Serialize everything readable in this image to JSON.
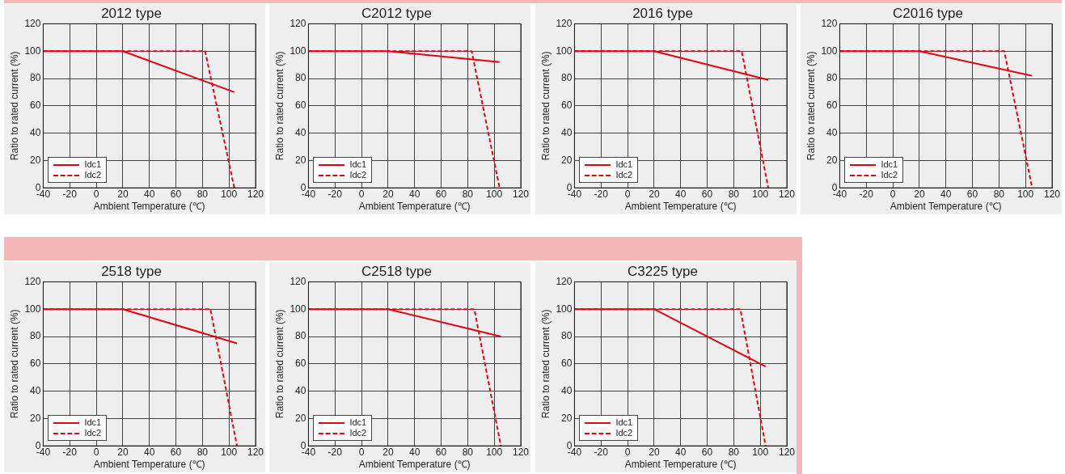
{
  "chart_data": [
    {
      "type": "line",
      "title": "2012 type",
      "xlabel": "Ambient Temperature (℃)",
      "ylabel": "Ratio to rated current (%)",
      "xlim": [
        -40,
        120
      ],
      "xticks": [
        -40,
        -20,
        0,
        20,
        40,
        60,
        80,
        100,
        120
      ],
      "ylim": [
        0,
        120
      ],
      "yticks": [
        0,
        20,
        40,
        60,
        80,
        100,
        120
      ],
      "grid": true,
      "legend": "bottom left",
      "series": [
        {
          "name": "Idc1",
          "color": "#e60012",
          "line_style": "solid",
          "x": [
            -40,
            20,
            104
          ],
          "values": [
            100,
            100,
            70
          ]
        },
        {
          "name": "Idc2",
          "color": "#e60012",
          "line_style": "dashed",
          "x": [
            -40,
            82,
            104
          ],
          "values": [
            100,
            100,
            0
          ]
        }
      ]
    },
    {
      "type": "line",
      "title": "C2012 type",
      "xlabel": "Ambient Temperature (℃)",
      "ylabel": "Ratio to rated current (%)",
      "xlim": [
        -40,
        120
      ],
      "xticks": [
        -40,
        -20,
        0,
        20,
        40,
        60,
        80,
        100,
        120
      ],
      "ylim": [
        0,
        120
      ],
      "yticks": [
        0,
        20,
        40,
        60,
        80,
        100,
        120
      ],
      "grid": true,
      "legend": "bottom left",
      "series": [
        {
          "name": "Idc1",
          "color": "#e60012",
          "line_style": "solid",
          "x": [
            -40,
            20,
            104
          ],
          "values": [
            100,
            100,
            92
          ]
        },
        {
          "name": "Idc2",
          "color": "#e60012",
          "line_style": "dashed",
          "x": [
            -40,
            83,
            104
          ],
          "values": [
            100,
            100,
            0
          ]
        }
      ]
    },
    {
      "type": "line",
      "title": "2016 type",
      "xlabel": "Ambient Temperature (℃)",
      "ylabel": "Ratio to rated current (%)",
      "xlim": [
        -40,
        120
      ],
      "xticks": [
        -40,
        -20,
        0,
        20,
        40,
        60,
        80,
        100,
        120
      ],
      "ylim": [
        0,
        120
      ],
      "yticks": [
        0,
        20,
        40,
        60,
        80,
        100,
        120
      ],
      "grid": true,
      "legend": "bottom left",
      "series": [
        {
          "name": "Idc1",
          "color": "#e60012",
          "line_style": "solid",
          "x": [
            -40,
            20,
            106
          ],
          "values": [
            100,
            100,
            79
          ]
        },
        {
          "name": "Idc2",
          "color": "#e60012",
          "line_style": "dashed",
          "x": [
            -40,
            86,
            106
          ],
          "values": [
            100,
            100,
            0
          ]
        }
      ]
    },
    {
      "type": "line",
      "title": "C2016 type",
      "xlabel": "Ambient Temperature (℃)",
      "ylabel": "Ratio to rated current (%)",
      "xlim": [
        -40,
        120
      ],
      "xticks": [
        -40,
        -20,
        0,
        20,
        40,
        60,
        80,
        100,
        120
      ],
      "ylim": [
        0,
        120
      ],
      "yticks": [
        0,
        20,
        40,
        60,
        80,
        100,
        120
      ],
      "grid": true,
      "legend": "bottom left",
      "series": [
        {
          "name": "Idc1",
          "color": "#e60012",
          "line_style": "solid",
          "x": [
            -40,
            20,
            105
          ],
          "values": [
            100,
            100,
            82
          ]
        },
        {
          "name": "Idc2",
          "color": "#e60012",
          "line_style": "dashed",
          "x": [
            -40,
            84,
            105
          ],
          "values": [
            100,
            100,
            0
          ]
        }
      ]
    },
    {
      "type": "line",
      "title": "2518 type",
      "xlabel": "Ambient Temperature (℃)",
      "ylabel": "Ratio to rated current (%)",
      "xlim": [
        -40,
        120
      ],
      "xticks": [
        -40,
        -20,
        0,
        20,
        40,
        60,
        80,
        100,
        120
      ],
      "ylim": [
        0,
        120
      ],
      "yticks": [
        0,
        20,
        40,
        60,
        80,
        100,
        120
      ],
      "grid": true,
      "legend": "bottom left",
      "series": [
        {
          "name": "Idc1",
          "color": "#e60012",
          "line_style": "solid",
          "x": [
            -40,
            20,
            106
          ],
          "values": [
            100,
            100,
            75
          ]
        },
        {
          "name": "Idc2",
          "color": "#e60012",
          "line_style": "dashed",
          "x": [
            -40,
            86,
            106
          ],
          "values": [
            100,
            100,
            0
          ]
        }
      ]
    },
    {
      "type": "line",
      "title": "C2518 type",
      "xlabel": "Ambient Temperature (℃)",
      "ylabel": "Ratio to rated current (%)",
      "xlim": [
        -40,
        120
      ],
      "xticks": [
        -40,
        -20,
        0,
        20,
        40,
        60,
        80,
        100,
        120
      ],
      "ylim": [
        0,
        120
      ],
      "yticks": [
        0,
        20,
        40,
        60,
        80,
        100,
        120
      ],
      "grid": true,
      "legend": "bottom left",
      "series": [
        {
          "name": "Idc1",
          "color": "#e60012",
          "line_style": "solid",
          "x": [
            -40,
            20,
            105
          ],
          "values": [
            100,
            100,
            80
          ]
        },
        {
          "name": "Idc2",
          "color": "#e60012",
          "line_style": "dashed",
          "x": [
            -40,
            85,
            105
          ],
          "values": [
            100,
            100,
            0
          ]
        }
      ]
    },
    {
      "type": "line",
      "title": "C3225 type",
      "xlabel": "Ambient Temperature (℃)",
      "ylabel": "Ratio to rated current (%)",
      "xlim": [
        -40,
        120
      ],
      "xticks": [
        -40,
        -20,
        0,
        20,
        40,
        60,
        80,
        100,
        120
      ],
      "ylim": [
        0,
        120
      ],
      "yticks": [
        0,
        20,
        40,
        60,
        80,
        100,
        120
      ],
      "grid": true,
      "legend": "bottom left",
      "series": [
        {
          "name": "Idc1",
          "color": "#e60012",
          "line_style": "solid",
          "x": [
            -40,
            20,
            104
          ],
          "values": [
            100,
            100,
            58
          ]
        },
        {
          "name": "Idc2",
          "color": "#e60012",
          "line_style": "dashed",
          "x": [
            -40,
            85,
            104
          ],
          "values": [
            100,
            100,
            0
          ]
        }
      ]
    }
  ]
}
